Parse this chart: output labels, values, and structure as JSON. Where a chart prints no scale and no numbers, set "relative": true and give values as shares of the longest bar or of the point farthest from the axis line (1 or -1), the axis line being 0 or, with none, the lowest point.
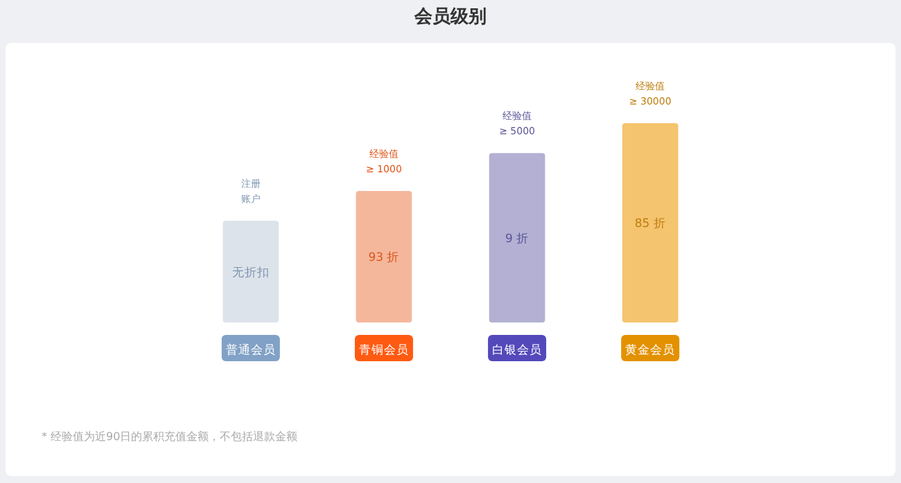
{
  "chart_data": {
    "type": "bar",
    "title": "会员级别",
    "relative": true,
    "categories": [
      "普通会员",
      "青铜会员",
      "白银会员",
      "黄金会员"
    ],
    "values": [
      0.51,
      0.66,
      0.85,
      1
    ],
    "colors": [
      "#dde3ea",
      "#f4b79c",
      "#b3b0d3",
      "#f5c46e"
    ],
    "annotations": [
      "注册账户",
      "经验值 ≥ 1000",
      "经验值 ≥ 5000",
      "经验值 ≥ 30000",
      "无折扣",
      "93 折",
      "9 折",
      "85 折",
      "* 经验值为近90日的累积充值金额，不包括退款金额"
    ]
  }
}
